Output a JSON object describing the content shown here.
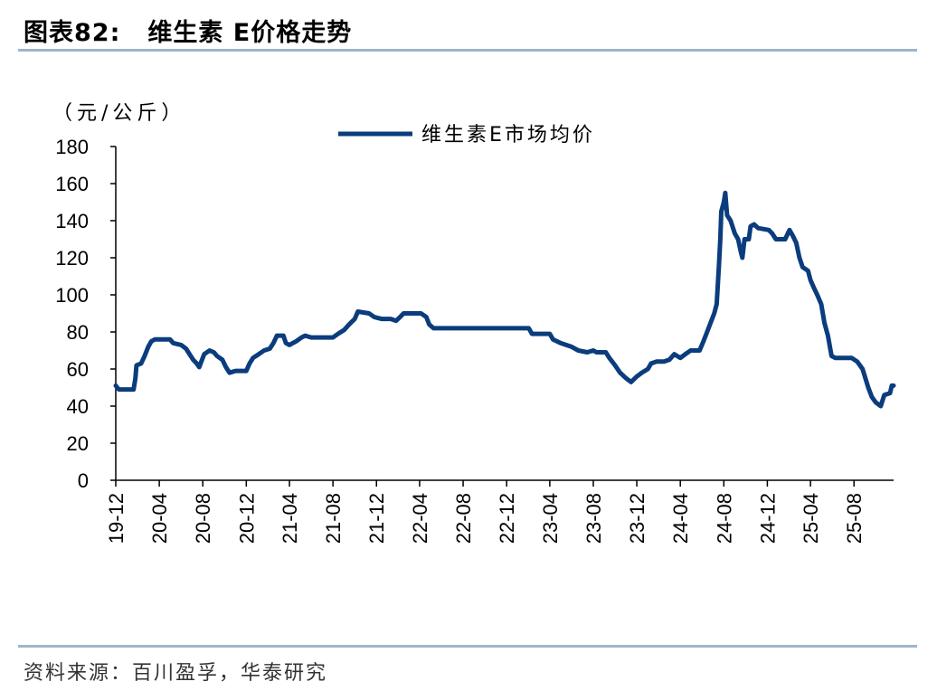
{
  "header": {
    "figure_no": "图表82:",
    "title": "维生素 E价格走势"
  },
  "source": "资料来源：百川盈孚，华泰研究",
  "colors": {
    "line": "#0b3c7d",
    "rule": "#9eb4cb",
    "axis": "#000000"
  },
  "chart_data": {
    "type": "line",
    "title": "维生素 E价格走势",
    "unit_label": "（元/公斤）",
    "xlabel": "",
    "ylabel": "",
    "ylim": [
      0,
      180
    ],
    "yticks": [
      0,
      20,
      40,
      60,
      80,
      100,
      120,
      140,
      160,
      180
    ],
    "xticks": [
      "19-12",
      "20-04",
      "20-08",
      "20-12",
      "21-04",
      "21-08",
      "21-12",
      "22-04",
      "22-08",
      "22-12",
      "23-04",
      "23-08",
      "23-12",
      "24-04",
      "24-08",
      "24-12",
      "25-04",
      "25-08"
    ],
    "x_range": [
      "2019-12-01",
      "2025-11-20"
    ],
    "grid": false,
    "legend_position": "top-center",
    "series": [
      {
        "name": "维生素E市场均价",
        "points": [
          [
            "2019-12-01",
            51
          ],
          [
            "2019-12-05",
            50
          ],
          [
            "2019-12-10",
            49
          ],
          [
            "2020-01-20",
            49
          ],
          [
            "2020-01-25",
            55
          ],
          [
            "2020-01-28",
            62
          ],
          [
            "2020-02-10",
            63
          ],
          [
            "2020-02-20",
            67
          ],
          [
            "2020-03-01",
            72
          ],
          [
            "2020-03-10",
            75
          ],
          [
            "2020-03-20",
            76
          ],
          [
            "2020-05-01",
            76
          ],
          [
            "2020-05-10",
            74
          ],
          [
            "2020-06-01",
            73
          ],
          [
            "2020-06-15",
            71
          ],
          [
            "2020-06-25",
            68
          ],
          [
            "2020-07-05",
            65
          ],
          [
            "2020-07-15",
            63
          ],
          [
            "2020-07-22",
            61
          ],
          [
            "2020-07-28",
            64
          ],
          [
            "2020-08-05",
            68
          ],
          [
            "2020-08-20",
            70
          ],
          [
            "2020-09-01",
            69
          ],
          [
            "2020-09-10",
            67
          ],
          [
            "2020-09-25",
            65
          ],
          [
            "2020-10-05",
            61
          ],
          [
            "2020-10-15",
            58
          ],
          [
            "2020-11-01",
            59
          ],
          [
            "2020-12-01",
            59
          ],
          [
            "2020-12-10",
            63
          ],
          [
            "2020-12-20",
            66
          ],
          [
            "2021-01-05",
            68
          ],
          [
            "2021-01-20",
            70
          ],
          [
            "2021-02-05",
            71
          ],
          [
            "2021-02-15",
            74
          ],
          [
            "2021-02-25",
            78
          ],
          [
            "2021-03-15",
            78
          ],
          [
            "2021-03-22",
            74
          ],
          [
            "2021-04-01",
            73
          ],
          [
            "2021-04-20",
            75
          ],
          [
            "2021-05-05",
            77
          ],
          [
            "2021-05-15",
            78
          ],
          [
            "2021-06-01",
            77
          ],
          [
            "2021-08-01",
            77
          ],
          [
            "2021-08-15",
            79
          ],
          [
            "2021-09-01",
            81
          ],
          [
            "2021-09-15",
            84
          ],
          [
            "2021-10-01",
            87
          ],
          [
            "2021-10-10",
            91
          ],
          [
            "2021-11-10",
            90
          ],
          [
            "2021-11-25",
            88
          ],
          [
            "2021-12-15",
            87
          ],
          [
            "2022-01-10",
            87
          ],
          [
            "2022-01-25",
            86
          ],
          [
            "2022-02-05",
            88
          ],
          [
            "2022-02-15",
            90
          ],
          [
            "2022-04-05",
            90
          ],
          [
            "2022-04-20",
            88
          ],
          [
            "2022-04-28",
            84
          ],
          [
            "2022-05-10",
            82
          ],
          [
            "2023-02-01",
            82
          ],
          [
            "2023-02-10",
            79
          ],
          [
            "2023-04-01",
            79
          ],
          [
            "2023-04-10",
            76
          ],
          [
            "2023-05-01",
            74
          ],
          [
            "2023-06-01",
            72
          ],
          [
            "2023-06-20",
            70
          ],
          [
            "2023-07-15",
            69
          ],
          [
            "2023-08-01",
            70
          ],
          [
            "2023-08-10",
            69
          ],
          [
            "2023-09-05",
            69
          ],
          [
            "2023-09-15",
            66
          ],
          [
            "2023-10-01",
            62
          ],
          [
            "2023-10-15",
            58
          ],
          [
            "2023-11-01",
            55
          ],
          [
            "2023-11-15",
            53
          ],
          [
            "2023-12-01",
            56
          ],
          [
            "2023-12-15",
            58
          ],
          [
            "2024-01-01",
            60
          ],
          [
            "2024-01-10",
            63
          ],
          [
            "2024-01-25",
            64
          ],
          [
            "2024-02-15",
            64
          ],
          [
            "2024-03-01",
            65
          ],
          [
            "2024-03-15",
            68
          ],
          [
            "2024-04-01",
            66
          ],
          [
            "2024-04-15",
            68
          ],
          [
            "2024-04-30",
            70
          ],
          [
            "2024-05-25",
            70
          ],
          [
            "2024-06-05",
            75
          ],
          [
            "2024-06-15",
            80
          ],
          [
            "2024-06-25",
            85
          ],
          [
            "2024-07-05",
            90
          ],
          [
            "2024-07-12",
            95
          ],
          [
            "2024-07-18",
            115
          ],
          [
            "2024-07-22",
            130
          ],
          [
            "2024-07-25",
            145
          ],
          [
            "2024-08-01",
            150
          ],
          [
            "2024-08-05",
            155
          ],
          [
            "2024-08-10",
            143
          ],
          [
            "2024-08-20",
            140
          ],
          [
            "2024-09-01",
            133
          ],
          [
            "2024-09-10",
            130
          ],
          [
            "2024-09-18",
            123
          ],
          [
            "2024-09-22",
            120
          ],
          [
            "2024-09-28",
            130
          ],
          [
            "2024-10-10",
            130
          ],
          [
            "2024-10-15",
            137
          ],
          [
            "2024-10-25",
            138
          ],
          [
            "2024-11-05",
            136
          ],
          [
            "2024-12-05",
            135
          ],
          [
            "2024-12-15",
            133
          ],
          [
            "2024-12-25",
            130
          ],
          [
            "2025-01-20",
            130
          ],
          [
            "2025-02-01",
            135
          ],
          [
            "2025-02-10",
            132
          ],
          [
            "2025-02-20",
            128
          ],
          [
            "2025-03-01",
            120
          ],
          [
            "2025-03-10",
            115
          ],
          [
            "2025-03-25",
            113
          ],
          [
            "2025-04-01",
            108
          ],
          [
            "2025-04-10",
            104
          ],
          [
            "2025-04-20",
            100
          ],
          [
            "2025-05-01",
            95
          ],
          [
            "2025-05-10",
            85
          ],
          [
            "2025-05-20",
            78
          ],
          [
            "2025-05-30",
            67
          ],
          [
            "2025-06-10",
            66
          ],
          [
            "2025-07-25",
            66
          ],
          [
            "2025-08-10",
            64
          ],
          [
            "2025-08-25",
            60
          ],
          [
            "2025-09-10",
            50
          ],
          [
            "2025-09-20",
            45
          ],
          [
            "2025-10-01",
            42
          ],
          [
            "2025-10-15",
            40
          ],
          [
            "2025-10-25",
            46
          ],
          [
            "2025-11-10",
            47
          ],
          [
            "2025-11-15",
            51
          ],
          [
            "2025-11-20",
            51
          ]
        ]
      }
    ]
  }
}
